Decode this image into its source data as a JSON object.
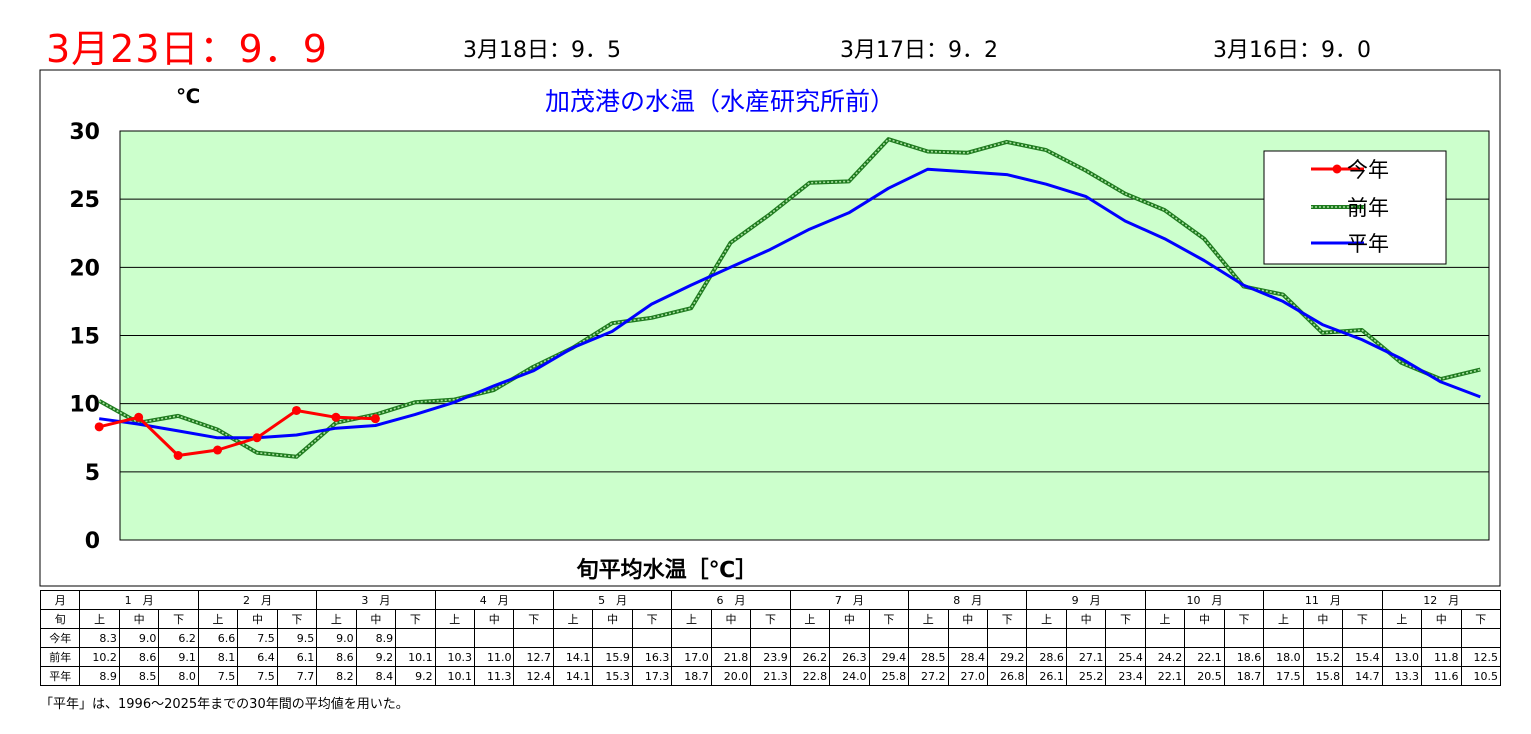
{
  "header": {
    "main": "3月23日：9．9",
    "sub": [
      "3月18日：9．5",
      "3月17日：9．2",
      "3月16日：9．0"
    ]
  },
  "chart_data": {
    "type": "line",
    "title": "加茂港の水温（水産研究所前）",
    "unit_label": "℃",
    "xlabel": "旬平均水温［℃］",
    "ylim": [
      0,
      30
    ],
    "yticks": [
      0,
      5,
      10,
      15,
      20,
      25,
      30
    ],
    "grid": true,
    "legend_position": "top-right",
    "background_color": "#ccffcc",
    "series": [
      {
        "name": "今年",
        "color": "#ff0000",
        "style": "line-marker",
        "values": [
          8.3,
          9.0,
          6.2,
          6.6,
          7.5,
          9.5,
          9.0,
          8.9
        ]
      },
      {
        "name": "前年",
        "color": "#228b22",
        "style": "dotted-double",
        "values": [
          10.2,
          8.6,
          9.1,
          8.1,
          6.4,
          6.1,
          8.6,
          9.2,
          10.1,
          10.3,
          11.0,
          12.7,
          14.1,
          15.9,
          16.3,
          17.0,
          21.8,
          23.9,
          26.2,
          26.3,
          29.4,
          28.5,
          28.4,
          29.2,
          28.6,
          27.1,
          25.4,
          24.2,
          22.1,
          18.6,
          18.0,
          15.2,
          15.4,
          13.0,
          11.8,
          12.5
        ]
      },
      {
        "name": "平年",
        "color": "#0000ff",
        "style": "line",
        "values": [
          8.9,
          8.5,
          8.0,
          7.5,
          7.5,
          7.7,
          8.2,
          8.4,
          9.2,
          10.1,
          11.3,
          12.4,
          14.1,
          15.3,
          17.3,
          18.7,
          20.0,
          21.3,
          22.8,
          24.0,
          25.8,
          27.2,
          27.0,
          26.8,
          26.1,
          25.2,
          23.4,
          22.1,
          20.5,
          18.7,
          17.5,
          15.8,
          14.7,
          13.3,
          11.6,
          10.5
        ]
      }
    ]
  },
  "table": {
    "row_labels": {
      "month": "月",
      "jun": "旬",
      "this_year": "今年",
      "last_year": "前年",
      "normal": "平年"
    },
    "months": [
      "1　月",
      "2　月",
      "3　月",
      "4　月",
      "5　月",
      "6　月",
      "7　月",
      "8　月",
      "9　月",
      "10　月",
      "11　月",
      "12　月"
    ],
    "jun_labels": [
      "上",
      "中",
      "下"
    ],
    "this_year": [
      "8.3",
      "9.0",
      "6.2",
      "6.6",
      "7.5",
      "9.5",
      "9.0",
      "8.9"
    ],
    "last_year": [
      "10.2",
      "8.6",
      "9.1",
      "8.1",
      "6.4",
      "6.1",
      "8.6",
      "9.2",
      "10.1",
      "10.3",
      "11.0",
      "12.7",
      "14.1",
      "15.9",
      "16.3",
      "17.0",
      "21.8",
      "23.9",
      "26.2",
      "26.3",
      "29.4",
      "28.5",
      "28.4",
      "29.2",
      "28.6",
      "27.1",
      "25.4",
      "24.2",
      "22.1",
      "18.6",
      "18.0",
      "15.2",
      "15.4",
      "13.0",
      "11.8",
      "12.5"
    ],
    "normal": [
      "8.9",
      "8.5",
      "8.0",
      "7.5",
      "7.5",
      "7.7",
      "8.2",
      "8.4",
      "9.2",
      "10.1",
      "11.3",
      "12.4",
      "14.1",
      "15.3",
      "17.3",
      "18.7",
      "20.0",
      "21.3",
      "22.8",
      "24.0",
      "25.8",
      "27.2",
      "27.0",
      "26.8",
      "26.1",
      "25.2",
      "23.4",
      "22.1",
      "20.5",
      "18.7",
      "17.5",
      "15.8",
      "14.7",
      "13.3",
      "11.6",
      "10.5"
    ]
  },
  "footnote": "「平年」は、1996～2025年までの30年間の平均値を用いた。"
}
